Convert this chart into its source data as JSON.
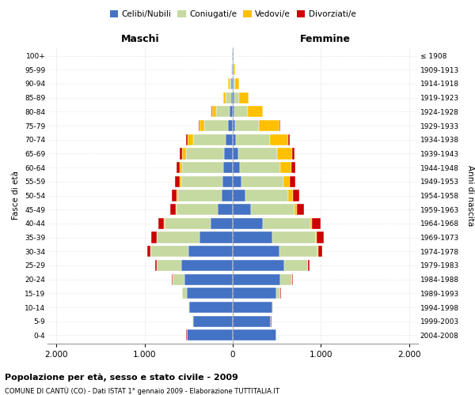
{
  "age_groups": [
    "0-4",
    "5-9",
    "10-14",
    "15-19",
    "20-24",
    "25-29",
    "30-34",
    "35-39",
    "40-44",
    "45-49",
    "50-54",
    "55-59",
    "60-64",
    "65-69",
    "70-74",
    "75-79",
    "80-84",
    "85-89",
    "90-94",
    "95-99",
    "100+"
  ],
  "birth_years": [
    "2004-2008",
    "1999-2003",
    "1994-1998",
    "1989-1993",
    "1984-1988",
    "1979-1983",
    "1974-1978",
    "1969-1973",
    "1964-1968",
    "1959-1963",
    "1954-1958",
    "1949-1953",
    "1944-1948",
    "1939-1943",
    "1934-1938",
    "1929-1933",
    "1924-1928",
    "1919-1923",
    "1914-1918",
    "1909-1913",
    "≤ 1908"
  ],
  "maschi_celibe": [
    520,
    450,
    490,
    520,
    550,
    580,
    500,
    380,
    250,
    170,
    130,
    115,
    110,
    100,
    80,
    55,
    35,
    20,
    15,
    8,
    5
  ],
  "maschi_coniugato": [
    5,
    5,
    10,
    50,
    130,
    280,
    430,
    480,
    520,
    470,
    490,
    470,
    460,
    430,
    370,
    270,
    150,
    60,
    25,
    8,
    3
  ],
  "maschi_vedovo": [
    0,
    0,
    0,
    0,
    1,
    2,
    3,
    5,
    8,
    10,
    15,
    20,
    30,
    40,
    60,
    55,
    50,
    30,
    10,
    3,
    1
  ],
  "maschi_divorziato": [
    1,
    1,
    2,
    5,
    10,
    20,
    40,
    60,
    70,
    60,
    55,
    50,
    40,
    30,
    20,
    10,
    5,
    2,
    1,
    0,
    0
  ],
  "femmine_celibe": [
    490,
    430,
    450,
    490,
    540,
    580,
    530,
    450,
    340,
    210,
    140,
    100,
    80,
    60,
    40,
    30,
    20,
    15,
    10,
    8,
    5
  ],
  "femmine_coniugato": [
    5,
    5,
    10,
    50,
    130,
    270,
    430,
    490,
    540,
    490,
    490,
    470,
    460,
    440,
    380,
    270,
    150,
    60,
    20,
    5,
    2
  ],
  "femmine_vedovo": [
    0,
    0,
    0,
    1,
    2,
    3,
    5,
    10,
    20,
    30,
    50,
    80,
    120,
    170,
    210,
    230,
    170,
    100,
    40,
    10,
    2
  ],
  "femmine_divorziato": [
    1,
    1,
    2,
    5,
    10,
    20,
    50,
    80,
    100,
    80,
    70,
    60,
    50,
    30,
    20,
    10,
    5,
    2,
    1,
    0,
    0
  ],
  "color_celibe": "#4472c4",
  "color_coniugato": "#c5d9a0",
  "color_vedovo": "#ffc000",
  "color_divorziato": "#cc0000",
  "title1": "Popolazione per età, sesso e stato civile - 2009",
  "title2": "COMUNE DI CANTÙ (CO) - Dati ISTAT 1° gennaio 2009 - Elaborazione TUTTITALIA.IT",
  "xlabel_maschi": "Maschi",
  "xlabel_femmine": "Femmine",
  "ylabel_left": "Fasce di età",
  "ylabel_right": "Anni di nascita",
  "xlim": 2100,
  "xticks": [
    -2000,
    -1000,
    0,
    1000,
    2000
  ],
  "xticklabels": [
    "2.000",
    "1.000",
    "0",
    "1.000",
    "2.000"
  ],
  "bg_color": "#ffffff",
  "grid_color": "#cccccc"
}
